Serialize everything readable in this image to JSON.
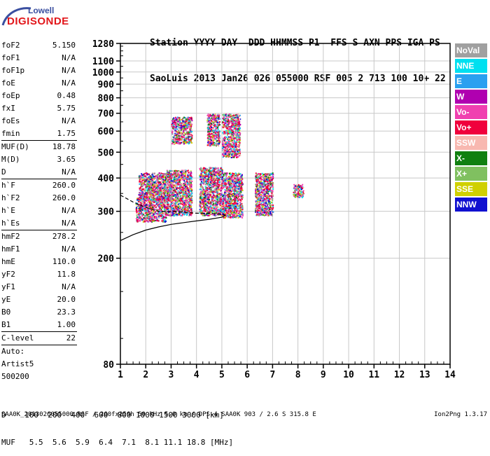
{
  "logo": {
    "line1": "Lowell",
    "line2": "DIGISONDE"
  },
  "header": {
    "line1": "Station YYYY DAY  DDD HHMMSS P1  FFS S AXN PPS IGA PS",
    "line2": "SaoLuis 2013 Jan26 026 055000 RSF 005 2 713 100 10+ 22"
  },
  "parameters": [
    {
      "name": "foF2",
      "value": "5.150"
    },
    {
      "name": "foF1",
      "value": "N/A"
    },
    {
      "name": "foF1p",
      "value": "N/A"
    },
    {
      "name": "foE",
      "value": "N/A"
    },
    {
      "name": "foEp",
      "value": "0.48"
    },
    {
      "name": "fxI",
      "value": "5.75"
    },
    {
      "name": "foEs",
      "value": "N/A"
    },
    {
      "name": "fmin",
      "value": "1.75"
    },
    {
      "name": "MUF(D)",
      "value": "18.78"
    },
    {
      "name": "M(D)",
      "value": "3.65"
    },
    {
      "name": "D",
      "value": "N/A"
    },
    {
      "name": "h`F",
      "value": "260.0"
    },
    {
      "name": "h`F2",
      "value": "260.0"
    },
    {
      "name": "h`E",
      "value": "N/A"
    },
    {
      "name": "h`Es",
      "value": "N/A"
    },
    {
      "name": "hmF2",
      "value": "278.2"
    },
    {
      "name": "hmF1",
      "value": "N/A"
    },
    {
      "name": "hmE",
      "value": "110.0"
    },
    {
      "name": "yF2",
      "value": "11.8"
    },
    {
      "name": "yF1",
      "value": "N/A"
    },
    {
      "name": "yE",
      "value": "20.0"
    },
    {
      "name": "B0",
      "value": "23.3"
    },
    {
      "name": "B1",
      "value": "1.00"
    },
    {
      "name": "C-level",
      "value": "22"
    }
  ],
  "auto": {
    "line1": "Auto:",
    "line2": "Artist5",
    "line3": "500200"
  },
  "legend": [
    {
      "label": "NoVal",
      "color": "#a0a0a0"
    },
    {
      "label": "NNE",
      "color": "#00e0f0"
    },
    {
      "label": "E",
      "color": "#2aa0f0"
    },
    {
      "label": "W",
      "color": "#b000b0"
    },
    {
      "label": "Vo-",
      "color": "#f040b0"
    },
    {
      "label": "Vo+",
      "color": "#f0003c"
    },
    {
      "label": "SSW",
      "color": "#f8b8b0"
    },
    {
      "label": "X-",
      "color": "#108010"
    },
    {
      "label": "X+",
      "color": "#80c060"
    },
    {
      "label": "SSE",
      "color": "#d0d000"
    },
    {
      "label": "NNW",
      "color": "#1010d0"
    }
  ],
  "bottom": {
    "d_line": "D    100  200  400  600  800 1000 1500 3000 [km]",
    "muf_line": "MUF   5.5  5.6  5.9  6.4  7.1  8.1 11.1 18.8 [MHz]"
  },
  "footer": {
    "left": "SAA0K_2013026055000.RSF / 260fx256h 50 kHz 5.0 km / DPS-4 SAA0K 903 / 2.6 S 315.8 E",
    "right": "Ion2Png 1.3.17"
  },
  "chart_data": {
    "type": "scatter",
    "title": "",
    "xlabel": "",
    "ylabel": "",
    "xlim": [
      1,
      14
    ],
    "ylim": [
      80,
      1280
    ],
    "y_scale": "log",
    "grid": true,
    "x_ticks": [
      1,
      2,
      3,
      4,
      5,
      6,
      7,
      8,
      9,
      10,
      11,
      12,
      13,
      14
    ],
    "y_ticks": [
      80,
      200,
      300,
      400,
      500,
      600,
      700,
      800,
      900,
      1000,
      1100,
      1280
    ],
    "series": [
      {
        "color_key": "mixed",
        "clusters": [
          {
            "x": [
              1.6,
              2.8
            ],
            "y": [
              275,
              340
            ]
          },
          {
            "x": [
              1.7,
              3.0
            ],
            "y": [
              330,
              420
            ]
          },
          {
            "x": [
              2.8,
              3.8
            ],
            "y": [
              290,
              430
            ]
          },
          {
            "x": [
              3.0,
              3.8
            ],
            "y": [
              540,
              680
            ]
          },
          {
            "x": [
              4.1,
              5.0
            ],
            "y": [
              290,
              440
            ]
          },
          {
            "x": [
              4.4,
              4.9
            ],
            "y": [
              530,
              700
            ]
          },
          {
            "x": [
              5.0,
              5.8
            ],
            "y": [
              285,
              420
            ]
          },
          {
            "x": [
              5.0,
              5.7
            ],
            "y": [
              480,
              700
            ]
          },
          {
            "x": [
              6.3,
              7.0
            ],
            "y": [
              290,
              420
            ]
          },
          {
            "x": [
              7.8,
              8.2
            ],
            "y": [
              340,
              380
            ]
          }
        ]
      }
    ],
    "profile_curves": [
      {
        "name": "virtual",
        "x": [
          1.0,
          1.5,
          2.0,
          2.5,
          3.0,
          3.5,
          4.0,
          4.5,
          5.0,
          5.15
        ],
        "y": [
          233,
          245,
          255,
          262,
          268,
          272,
          276,
          280,
          285,
          290
        ]
      },
      {
        "name": "dashed",
        "x": [
          1.0,
          1.5,
          2.0,
          2.5,
          3.0,
          3.5,
          4.0,
          4.5,
          5.0,
          5.15
        ],
        "y": [
          345,
          325,
          310,
          300,
          300,
          298,
          295,
          295,
          292,
          290
        ]
      }
    ]
  }
}
